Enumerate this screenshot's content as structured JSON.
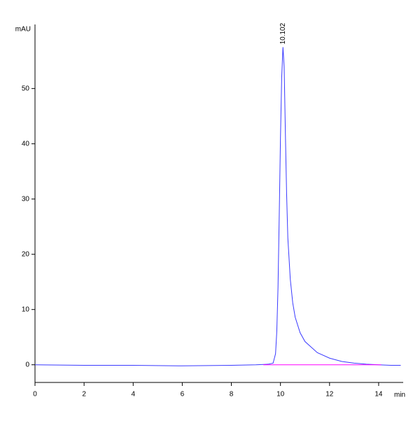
{
  "chart_data": {
    "type": "line",
    "y_label": "mAU",
    "x_label": "min",
    "xlim": [
      0,
      15
    ],
    "ylim": [
      -3.2,
      61.6
    ],
    "xticks": [
      0,
      2,
      4,
      6,
      8,
      10,
      12,
      14
    ],
    "yticks": [
      0,
      10,
      20,
      30,
      40,
      50
    ],
    "series": [
      {
        "color": "#3a3aff",
        "x": [
          0,
          2,
          4,
          6,
          8,
          9,
          9.5,
          9.7,
          9.8,
          9.85,
          9.9,
          9.95,
          10.0,
          10.05,
          10.102,
          10.15,
          10.2,
          10.25,
          10.3,
          10.4,
          10.5,
          10.6,
          10.8,
          11.0,
          11.5,
          12.0,
          12.5,
          13.0,
          13.5,
          14.0,
          14.5,
          14.9
        ],
        "values": [
          0,
          -0.1,
          -0.1,
          -0.2,
          -0.1,
          0,
          0.1,
          0.3,
          2,
          6,
          14,
          27,
          41,
          52,
          57.5,
          54,
          42,
          31,
          23,
          15.5,
          11.2,
          8.6,
          5.8,
          4.2,
          2.2,
          1.2,
          0.6,
          0.3,
          0.1,
          0,
          -0.1,
          -0.1
        ]
      },
      {
        "color": "#ff00ff",
        "x": [
          9.3,
          14.1
        ],
        "values": [
          0,
          0
        ]
      }
    ],
    "annotations": [
      {
        "text": "10.102",
        "x": 10.102,
        "y": 57.5
      }
    ]
  }
}
